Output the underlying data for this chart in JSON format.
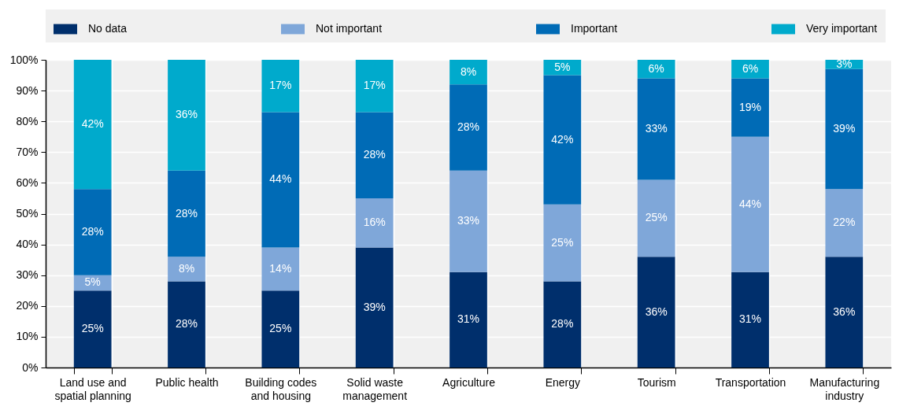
{
  "chart_data": {
    "type": "bar",
    "stacked": true,
    "categories": [
      "Land use and spatial planning",
      "Public health",
      "Building codes and housing",
      "Solid waste management",
      "Agriculture",
      "Energy",
      "Tourism",
      "Transportation",
      "Manufacturing industry"
    ],
    "series": [
      {
        "name": "No data",
        "color": "#002f6c",
        "values": [
          25,
          28,
          25,
          39,
          31,
          28,
          36,
          31,
          36
        ],
        "value_labels": [
          "25%",
          "28%",
          "25%",
          "39%",
          "31%",
          "28%",
          "36%",
          "31%",
          "36%"
        ]
      },
      {
        "name": "Not important",
        "color": "#7fa7d9",
        "values": [
          5,
          8,
          14,
          16,
          33,
          25,
          25,
          44,
          22
        ],
        "value_labels": [
          "5%",
          "8%",
          "14%",
          "16%",
          "33%",
          "25%",
          "25%",
          "44%",
          "22%"
        ]
      },
      {
        "name": "Important",
        "color": "#006bb6",
        "values": [
          28,
          28,
          44,
          28,
          28,
          42,
          33,
          19,
          39
        ],
        "value_labels": [
          "28%",
          "28%",
          "44%",
          "28%",
          "28%",
          "42%",
          "33%",
          "19%",
          "39%"
        ]
      },
      {
        "name": "Very important",
        "color": "#00aacc",
        "values": [
          42,
          36,
          17,
          17,
          8,
          5,
          6,
          6,
          3
        ],
        "value_labels": [
          "42%",
          "36%",
          "17%",
          "17%",
          "8%",
          "5%",
          "6%",
          "6%",
          "3%"
        ]
      }
    ],
    "ylim": [
      0,
      100
    ],
    "yticks": [
      {
        "value": 0,
        "label": "0%"
      },
      {
        "value": 10,
        "label": "10%"
      },
      {
        "value": 20,
        "label": "20%"
      },
      {
        "value": 30,
        "label": "30%"
      },
      {
        "value": 40,
        "label": "40%"
      },
      {
        "value": 50,
        "label": "50%"
      },
      {
        "value": 60,
        "label": "60%"
      },
      {
        "value": 70,
        "label": "70%"
      },
      {
        "value": 80,
        "label": "80%"
      },
      {
        "value": 90,
        "label": "90%"
      },
      {
        "value": 100,
        "label": "100%"
      }
    ],
    "grid": true,
    "legend": "top"
  }
}
